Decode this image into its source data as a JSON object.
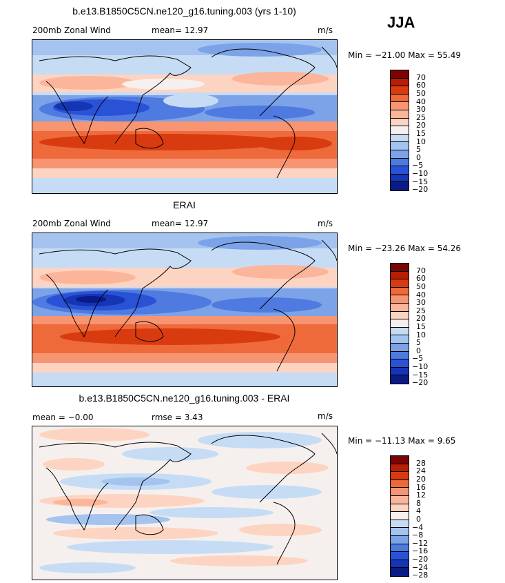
{
  "season": "JJA",
  "panels": [
    {
      "title": "b.e13.B1850C5CN.ne120_g16.tuning.003 (yrs 1-10)",
      "left_label": "200mb Zonal Wind",
      "center_label": "mean=   12.97",
      "units": "m/s",
      "minmax": "Min = −21.00 Max =  55.49",
      "colorbar_levels": [
        "70",
        "60",
        "50",
        "40",
        "30",
        "25",
        "20",
        "15",
        "10",
        "5",
        "0",
        "−5",
        "−10",
        "−15",
        "−20"
      ]
    },
    {
      "title": "ERAI",
      "left_label": "200mb Zonal Wind",
      "center_label": "mean=   12.97",
      "units": "m/s",
      "minmax": "Min = −23.26 Max =  54.26",
      "colorbar_levels": [
        "70",
        "60",
        "50",
        "40",
        "30",
        "25",
        "20",
        "15",
        "10",
        "5",
        "0",
        "−5",
        "−10",
        "−15",
        "−20"
      ]
    },
    {
      "title": "b.e13.B1850C5CN.ne120_g16.tuning.003 - ERAI",
      "left_label": "mean =   −0.00",
      "center_label": "rmse =    3.43",
      "units": "m/s",
      "minmax": "Min = −11.13 Max =   9.65",
      "colorbar_levels": [
        "28",
        "24",
        "20",
        "16",
        "12",
        "8",
        "4",
        "0",
        "−4",
        "−8",
        "−12",
        "−16",
        "−20",
        "−24",
        "−28"
      ]
    }
  ],
  "colors": {
    "scale": [
      "#7a0403",
      "#b81d05",
      "#d93b10",
      "#ee6a3b",
      "#f79472",
      "#fbb59a",
      "#fdd4c2",
      "#f5f0ee",
      "#c6dcf5",
      "#a4c3ef",
      "#7ca2e8",
      "#4f7ae0",
      "#2a52d6",
      "#1535b5",
      "#0a1a86"
    ]
  }
}
